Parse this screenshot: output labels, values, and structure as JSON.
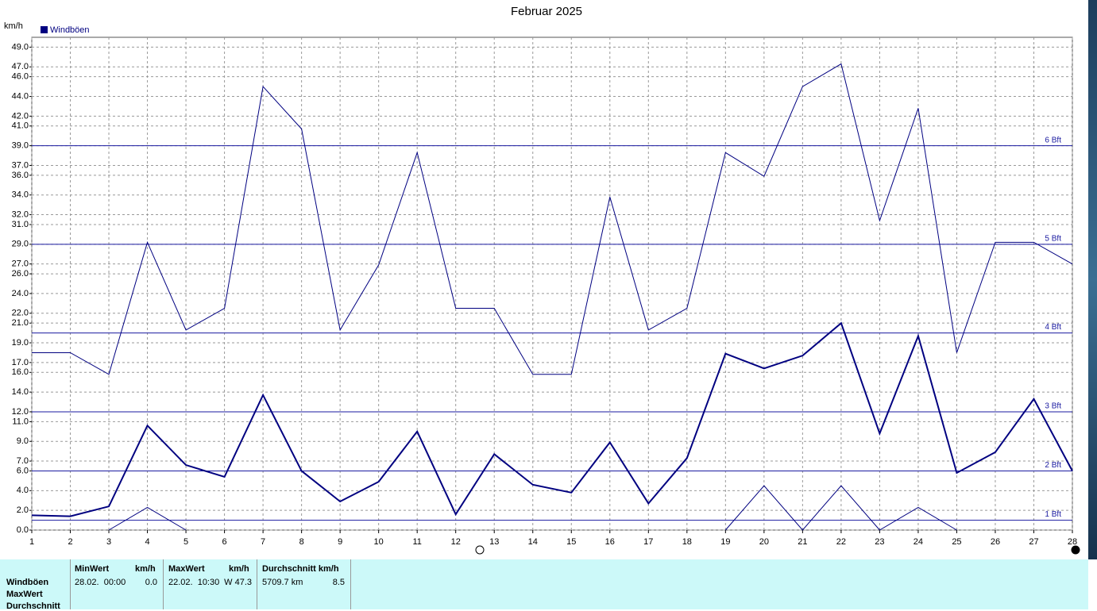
{
  "chart_data": {
    "type": "line",
    "title": "Februar 2025",
    "y_label": "km/h",
    "x": [
      1,
      2,
      3,
      4,
      5,
      6,
      7,
      8,
      9,
      10,
      11,
      12,
      13,
      14,
      15,
      16,
      17,
      18,
      19,
      20,
      21,
      22,
      23,
      24,
      25,
      26,
      27,
      28
    ],
    "xlim": [
      1,
      28
    ],
    "xticks": [
      1,
      2,
      3,
      4,
      5,
      6,
      7,
      8,
      9,
      10,
      11,
      12,
      13,
      14,
      15,
      16,
      17,
      18,
      19,
      20,
      21,
      22,
      23,
      24,
      25,
      26,
      27,
      28
    ],
    "ylim": [
      0,
      50
    ],
    "yticks": [
      {
        "value": 0,
        "label": "0.0"
      },
      {
        "value": 2,
        "label": "2.0"
      },
      {
        "value": 4,
        "label": "4.0"
      },
      {
        "value": 6,
        "label": "6.0"
      },
      {
        "value": 7,
        "label": "7.0"
      },
      {
        "value": 9,
        "label": "9.0"
      },
      {
        "value": 11,
        "label": "11.0"
      },
      {
        "value": 12,
        "label": "12.0"
      },
      {
        "value": 14,
        "label": "14.0"
      },
      {
        "value": 16,
        "label": "16.0"
      },
      {
        "value": 17,
        "label": "17.0"
      },
      {
        "value": 19,
        "label": "19.0"
      },
      {
        "value": 21,
        "label": "21.0"
      },
      {
        "value": 22,
        "label": "22.0"
      },
      {
        "value": 24,
        "label": "24.0"
      },
      {
        "value": 26,
        "label": "26.0"
      },
      {
        "value": 27,
        "label": "27.0"
      },
      {
        "value": 29,
        "label": "29.0"
      },
      {
        "value": 31,
        "label": "31.0"
      },
      {
        "value": 32,
        "label": "32.0"
      },
      {
        "value": 34,
        "label": "34.0"
      },
      {
        "value": 36,
        "label": "36.0"
      },
      {
        "value": 37,
        "label": "37.0"
      },
      {
        "value": 39,
        "label": "39.0"
      },
      {
        "value": 41,
        "label": "41.0"
      },
      {
        "value": 42,
        "label": "42.0"
      },
      {
        "value": 44,
        "label": "44.0"
      },
      {
        "value": 46,
        "label": "46.0"
      },
      {
        "value": 47,
        "label": "47.0"
      },
      {
        "value": 49,
        "label": "49.0"
      }
    ],
    "grid": true,
    "legend": "top-left",
    "bft_lines": [
      {
        "value": 1,
        "label": "1 Bft"
      },
      {
        "value": 6,
        "label": "2 Bft"
      },
      {
        "value": 12,
        "label": "3 Bft"
      },
      {
        "value": 20,
        "label": "4 Bft"
      },
      {
        "value": 29,
        "label": "5 Bft"
      },
      {
        "value": 39,
        "label": "6 Bft"
      }
    ],
    "bft_color": "#1a1aa0",
    "series": [
      {
        "name": "Windböen",
        "color": "#000080",
        "width": 1,
        "values": [
          18.0,
          18.0,
          15.8,
          29.2,
          20.3,
          22.5,
          45.0,
          40.7,
          20.3,
          26.9,
          38.3,
          22.5,
          22.5,
          15.8,
          15.8,
          33.8,
          20.3,
          22.5,
          38.3,
          35.9,
          45.0,
          47.3,
          31.4,
          42.8,
          18.0,
          29.2,
          29.2,
          27.0
        ]
      },
      {
        "color": "#000080",
        "width": 2,
        "values": [
          1.5,
          1.4,
          2.4,
          10.6,
          6.6,
          5.4,
          13.7,
          6.0,
          2.9,
          4.9,
          10.0,
          1.6,
          7.7,
          4.6,
          3.8,
          8.9,
          2.7,
          7.3,
          17.9,
          16.4,
          17.7,
          21.0,
          9.8,
          19.7,
          5.8,
          7.9,
          13.3,
          6.0
        ]
      },
      {
        "color": "#000080",
        "width": 1,
        "values": [
          null,
          null,
          0,
          2.3,
          0,
          null,
          null,
          null,
          null,
          null,
          null,
          null,
          null,
          null,
          null,
          null,
          null,
          null,
          0,
          4.5,
          0,
          4.5,
          0,
          2.3,
          0,
          null,
          null,
          null
        ]
      }
    ]
  },
  "table": {
    "row_labels": [
      "Windböen",
      "MaxWert",
      "Durchschnitt"
    ],
    "min": {
      "header": "MinWert",
      "unit": "km/h",
      "time": "28.02.  00:00",
      "value": "0.0"
    },
    "max": {
      "header": "MaxWert",
      "unit": "km/h",
      "time": "22.02.  10:30",
      "value": "W 47.3"
    },
    "avg": {
      "header": "Durchschnitt km/h",
      "distance": "5709.7 km",
      "value": "8.5"
    }
  }
}
